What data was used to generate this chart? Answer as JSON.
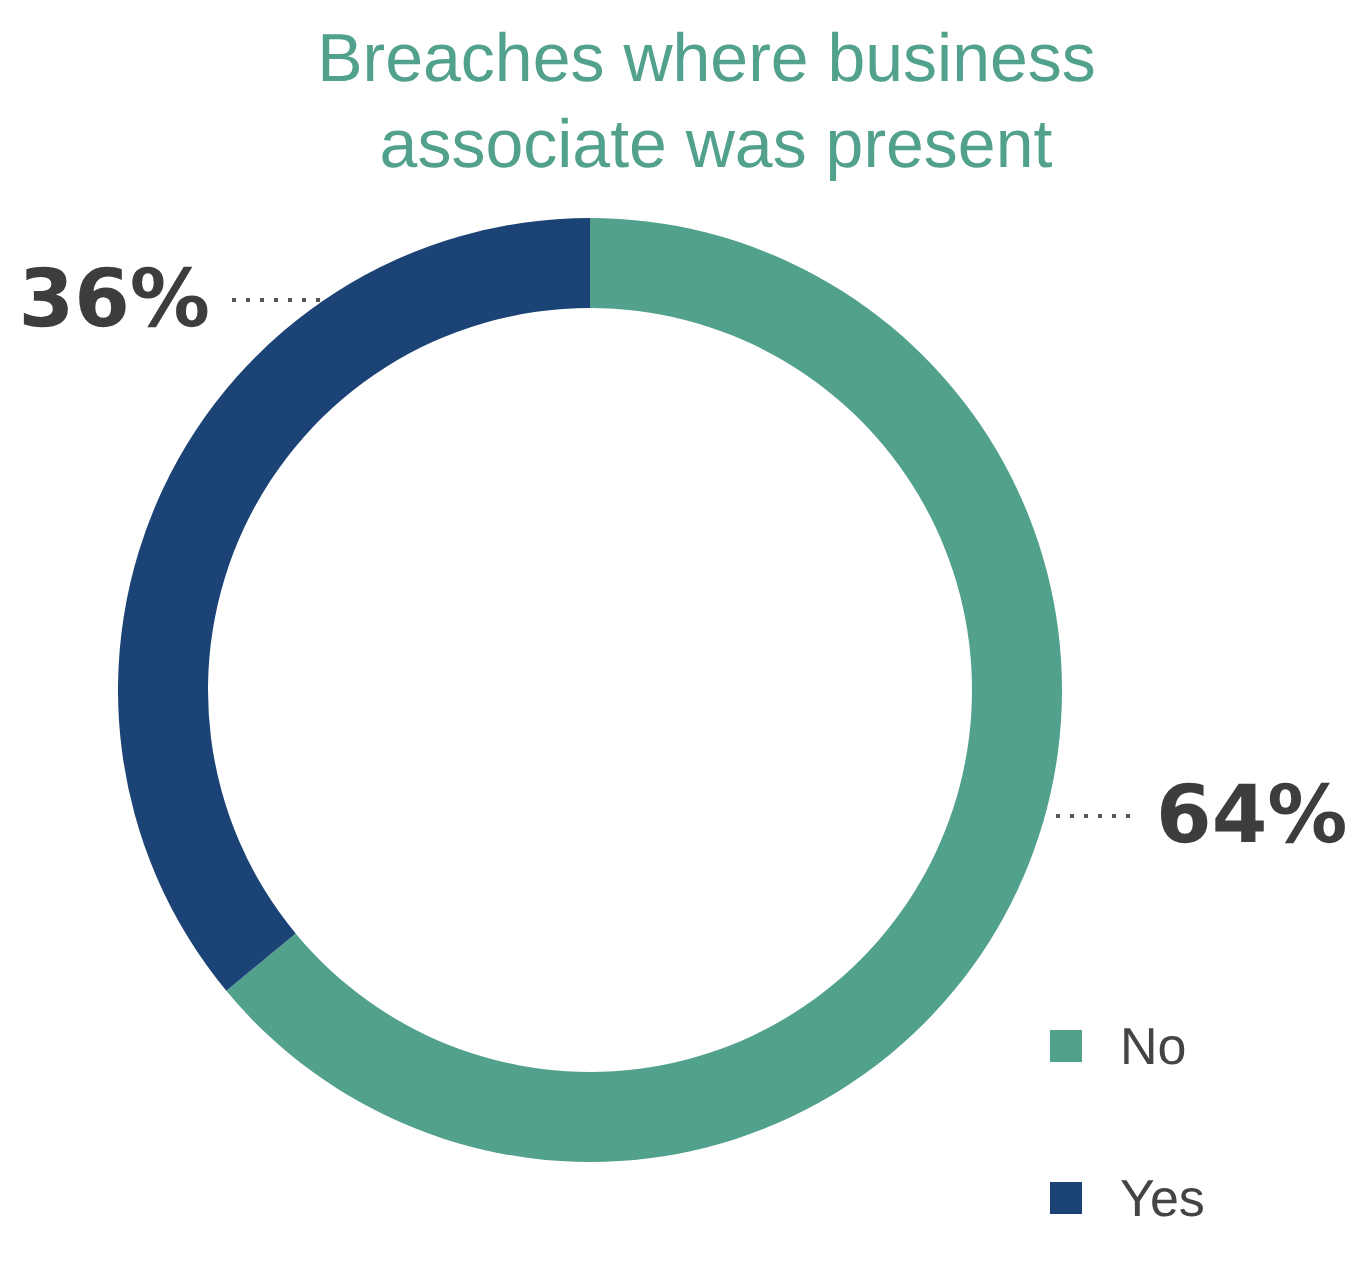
{
  "chart_data": {
    "type": "donut",
    "title": "Breaches where business associate was present",
    "categories": [
      "No",
      "Yes"
    ],
    "values": [
      64,
      36
    ],
    "colors": [
      "#52a18c",
      "#1c4375"
    ],
    "value_labels": [
      "64%",
      "36%"
    ],
    "legend": "bottom right"
  }
}
